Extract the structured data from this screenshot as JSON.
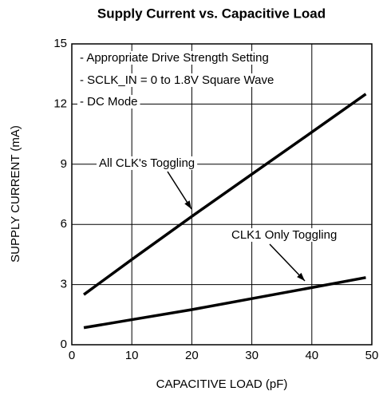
{
  "chart_data": {
    "type": "line",
    "title": "Supply Current vs. Capacitive Load",
    "xlabel": "CAPACITIVE LOAD (pF)",
    "ylabel": "SUPPLY CURRENT (mA)",
    "notes": [
      "- Appropriate Drive Strength Setting",
      "- SCLK_IN = 0 to 1.8V Square Wave",
      "- DC Mode"
    ],
    "x": [
      2,
      10,
      20,
      30,
      40,
      49
    ],
    "series": [
      {
        "name": "All CLK's Toggling",
        "color": "#000000",
        "values": [
          2.5,
          4.25,
          6.4,
          8.5,
          10.6,
          12.5
        ]
      },
      {
        "name": "CLK1 Only Toggling",
        "color": "#000000",
        "values": [
          0.85,
          1.25,
          1.75,
          2.3,
          2.85,
          3.35
        ]
      }
    ],
    "xlim": [
      0,
      50
    ],
    "xticks": [
      0,
      10,
      20,
      30,
      40,
      50
    ],
    "ylim": [
      0,
      15
    ],
    "yticks": [
      0,
      3,
      6,
      9,
      12,
      15
    ],
    "grid": true
  }
}
